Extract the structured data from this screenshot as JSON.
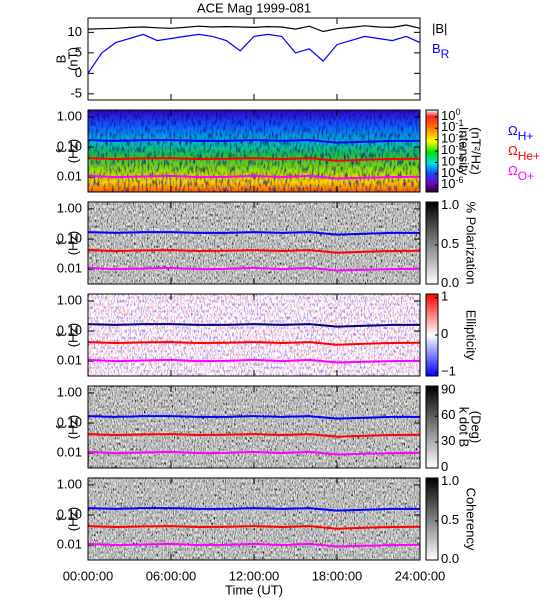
{
  "chart_data": [
    {
      "type": "line",
      "title": "ACE Mag 1999-081",
      "ylabel": [
        "B",
        "(nT)"
      ],
      "xlim": [
        0,
        24
      ],
      "xticks": [
        0,
        6,
        12,
        18,
        24
      ],
      "ylim": [
        -6.5,
        13.5
      ],
      "yticks": [
        -5,
        0,
        5,
        10
      ],
      "x": [
        0,
        1,
        2,
        3,
        4,
        5,
        6,
        7,
        8,
        9,
        10,
        11,
        12,
        13,
        14,
        15,
        16,
        17,
        18,
        19,
        20,
        21,
        22,
        23,
        24
      ],
      "series": [
        {
          "name": "|B|",
          "color": "#000000",
          "values": [
            10.8,
            10.9,
            11,
            11.2,
            11.3,
            11.1,
            11,
            11.2,
            11.5,
            11.3,
            11.4,
            11.3,
            11.2,
            11.4,
            11.3,
            10.8,
            11.5,
            10.2,
            10.9,
            11.2,
            11.6,
            11.3,
            11.2,
            11.8,
            11
          ]
        },
        {
          "name": "B",
          "name_sub": "R",
          "color": "#0000ff",
          "values": [
            0,
            5,
            7.5,
            8.5,
            9.5,
            8,
            8.5,
            9,
            9.5,
            9,
            8,
            5.5,
            9,
            9.5,
            9,
            5,
            6,
            3,
            7,
            8,
            9,
            8.5,
            8,
            9,
            7.5
          ]
        }
      ]
    },
    {
      "type": "spectrogram",
      "colormap": "rainbow",
      "ylabel": [
        "f",
        "(Hz)"
      ],
      "log_y": true,
      "xlim": [
        0,
        24
      ],
      "xticks": [
        0,
        6,
        12,
        18,
        24
      ],
      "ylim": [
        0.0032,
        1.7
      ],
      "yticks": [
        {
          "value": 1,
          "label": "1.00"
        },
        {
          "value": 0.1,
          "label": "0.10"
        },
        {
          "value": 0.01,
          "label": "0.01"
        }
      ],
      "colorbar": {
        "label": [
          "Intensity",
          "(nT²/Hz)"
        ],
        "log": true,
        "zlim": [
          2.5e-07,
          4
        ],
        "zticks": [
          {
            "value": 1,
            "label": "10",
            "exponent": "0"
          },
          {
            "value": 0.1,
            "label": "10",
            "exponent": "-1"
          },
          {
            "value": 0.01,
            "label": "10",
            "exponent": "-2"
          },
          {
            "value": 0.001,
            "label": "10",
            "exponent": "-3"
          },
          {
            "value": 0.0001,
            "label": "10",
            "exponent": "-4"
          },
          {
            "value": 1e-05,
            "label": "10",
            "exponent": "-5"
          },
          {
            "value": 1e-06,
            "label": "10",
            "exponent": "-6"
          }
        ]
      },
      "x": [
        0,
        2,
        4,
        6,
        8,
        10,
        12,
        14,
        16,
        18,
        20,
        22,
        24
      ],
      "series": [
        {
          "name": "Ω",
          "name_sub": "H+",
          "color": "#0000ff",
          "values": [
            0.17,
            0.16,
            0.17,
            0.17,
            0.16,
            0.16,
            0.17,
            0.16,
            0.17,
            0.14,
            0.15,
            0.16,
            0.16
          ]
        },
        {
          "name": "Ω",
          "name_sub": "He+",
          "color": "#ff0000",
          "values": [
            0.043,
            0.04,
            0.042,
            0.043,
            0.04,
            0.041,
            0.043,
            0.04,
            0.043,
            0.035,
            0.038,
            0.04,
            0.041
          ]
        },
        {
          "name": "Ω",
          "name_sub": "O+",
          "color": "#ff00ff",
          "values": [
            0.011,
            0.01,
            0.0105,
            0.011,
            0.01,
            0.0102,
            0.011,
            0.01,
            0.011,
            0.009,
            0.0095,
            0.01,
            0.0103
          ]
        }
      ]
    },
    {
      "type": "spectrogram",
      "colormap": "gray",
      "ylabel": [
        "f",
        "(Hz)"
      ],
      "log_y": true,
      "xlim": [
        0,
        24
      ],
      "xticks": [
        0,
        6,
        12,
        18,
        24
      ],
      "ylim": [
        0.0032,
        1.7
      ],
      "yticks": [
        {
          "value": 1,
          "label": "1.00"
        },
        {
          "value": 0.1,
          "label": "0.10"
        },
        {
          "value": 0.01,
          "label": "0.01"
        }
      ],
      "colorbar": {
        "label": [
          "% Polarization"
        ],
        "zlim": [
          0,
          1.05
        ],
        "zticks": [
          {
            "value": 1,
            "label": "1.0"
          },
          0.5,
          {
            "value": 0,
            "label": "0.0"
          }
        ]
      },
      "x": [
        0,
        2,
        4,
        6,
        8,
        10,
        12,
        14,
        16,
        18,
        20,
        22,
        24
      ],
      "series": [
        {
          "color": "#0000ff",
          "values": [
            0.17,
            0.16,
            0.17,
            0.17,
            0.16,
            0.16,
            0.17,
            0.16,
            0.17,
            0.14,
            0.15,
            0.16,
            0.16
          ]
        },
        {
          "color": "#ff0000",
          "values": [
            0.043,
            0.04,
            0.042,
            0.043,
            0.04,
            0.041,
            0.043,
            0.04,
            0.043,
            0.035,
            0.038,
            0.04,
            0.041
          ]
        },
        {
          "color": "#ff00ff",
          "values": [
            0.011,
            0.01,
            0.0105,
            0.011,
            0.01,
            0.0102,
            0.011,
            0.01,
            0.011,
            0.009,
            0.0095,
            0.01,
            0.0103
          ]
        }
      ]
    },
    {
      "type": "spectrogram",
      "colormap": "bwr",
      "ylabel": [
        "f",
        "(Hz)"
      ],
      "log_y": true,
      "xlim": [
        0,
        24
      ],
      "xticks": [
        0,
        6,
        12,
        18,
        24
      ],
      "ylim": [
        0.0032,
        1.7
      ],
      "yticks": [
        {
          "value": 1,
          "label": "1.00"
        },
        {
          "value": 0.1,
          "label": "0.10"
        },
        {
          "value": 0.01,
          "label": "0.01"
        }
      ],
      "colorbar": {
        "label": [
          "Ellipticity"
        ],
        "zlim": [
          -1.1,
          1.1
        ],
        "zticks": [
          1,
          0,
          {
            "value": -1,
            "label": "−1"
          }
        ]
      },
      "x": [
        0,
        2,
        4,
        6,
        8,
        10,
        12,
        14,
        16,
        18,
        20,
        22,
        24
      ],
      "series": [
        {
          "color": "#000080",
          "values": [
            0.17,
            0.16,
            0.17,
            0.17,
            0.16,
            0.16,
            0.17,
            0.16,
            0.17,
            0.14,
            0.15,
            0.16,
            0.16
          ]
        },
        {
          "color": "#ff0000",
          "values": [
            0.043,
            0.04,
            0.042,
            0.043,
            0.04,
            0.041,
            0.043,
            0.04,
            0.043,
            0.035,
            0.038,
            0.04,
            0.041
          ]
        },
        {
          "color": "#ff00ff",
          "values": [
            0.011,
            0.01,
            0.0105,
            0.011,
            0.01,
            0.0102,
            0.011,
            0.01,
            0.011,
            0.009,
            0.0095,
            0.01,
            0.0103
          ]
        }
      ]
    },
    {
      "type": "spectrogram",
      "colormap": "gray",
      "ylabel": [
        "f",
        "(Hz)"
      ],
      "log_y": true,
      "xlim": [
        0,
        24
      ],
      "xticks": [
        0,
        6,
        12,
        18,
        24
      ],
      "ylim": [
        0.0032,
        1.7
      ],
      "yticks": [
        {
          "value": 1,
          "label": "1.00"
        },
        {
          "value": 0.1,
          "label": "0.10"
        },
        {
          "value": 0.01,
          "label": "0.01"
        }
      ],
      "colorbar": {
        "label": [
          "k dot B",
          "(Deg)"
        ],
        "zlim": [
          0,
          95
        ],
        "zticks": [
          90,
          60,
          30,
          0
        ]
      },
      "x": [
        0,
        2,
        4,
        6,
        8,
        10,
        12,
        14,
        16,
        18,
        20,
        22,
        24
      ],
      "series": [
        {
          "color": "#0000ff",
          "values": [
            0.17,
            0.16,
            0.17,
            0.17,
            0.16,
            0.16,
            0.17,
            0.16,
            0.17,
            0.14,
            0.15,
            0.16,
            0.16
          ]
        },
        {
          "color": "#ff0000",
          "values": [
            0.043,
            0.04,
            0.042,
            0.043,
            0.04,
            0.041,
            0.043,
            0.04,
            0.043,
            0.035,
            0.038,
            0.04,
            0.041
          ]
        },
        {
          "color": "#ff00ff",
          "values": [
            0.011,
            0.01,
            0.0105,
            0.011,
            0.01,
            0.0102,
            0.011,
            0.01,
            0.011,
            0.009,
            0.0095,
            0.01,
            0.0103
          ]
        }
      ]
    },
    {
      "type": "spectrogram",
      "colormap": "gray",
      "ylabel": [
        "f",
        "(Hz)"
      ],
      "log_y": true,
      "xlabel": "Time (UT)",
      "xlim": [
        0,
        24
      ],
      "xticks": [
        {
          "value": 0,
          "label": "00:00:00"
        },
        {
          "value": 6,
          "label": "06:00:00"
        },
        {
          "value": 12,
          "label": "12:00:00"
        },
        {
          "value": 18,
          "label": "18:00:00"
        },
        {
          "value": 24,
          "label": "24:00:00"
        }
      ],
      "ylim": [
        0.0032,
        1.7
      ],
      "yticks": [
        {
          "value": 1,
          "label": "1.00"
        },
        {
          "value": 0.1,
          "label": "0.10"
        },
        {
          "value": 0.01,
          "label": "0.01"
        }
      ],
      "colorbar": {
        "label": [
          "Coherency"
        ],
        "zlim": [
          0,
          1.05
        ],
        "zticks": [
          {
            "value": 1,
            "label": "1.0"
          },
          0.5,
          {
            "value": 0,
            "label": "0.0"
          }
        ]
      },
      "x": [
        0,
        2,
        4,
        6,
        8,
        10,
        12,
        14,
        16,
        18,
        20,
        22,
        24
      ],
      "series": [
        {
          "color": "#0000ff",
          "values": [
            0.17,
            0.16,
            0.17,
            0.17,
            0.16,
            0.16,
            0.17,
            0.16,
            0.17,
            0.14,
            0.15,
            0.16,
            0.16
          ]
        },
        {
          "color": "#ff0000",
          "values": [
            0.043,
            0.04,
            0.042,
            0.043,
            0.04,
            0.041,
            0.043,
            0.04,
            0.043,
            0.035,
            0.038,
            0.04,
            0.041
          ]
        },
        {
          "color": "#ff00ff",
          "values": [
            0.011,
            0.01,
            0.0105,
            0.011,
            0.01,
            0.0102,
            0.011,
            0.01,
            0.011,
            0.009,
            0.0095,
            0.01,
            0.0103
          ]
        }
      ]
    }
  ]
}
